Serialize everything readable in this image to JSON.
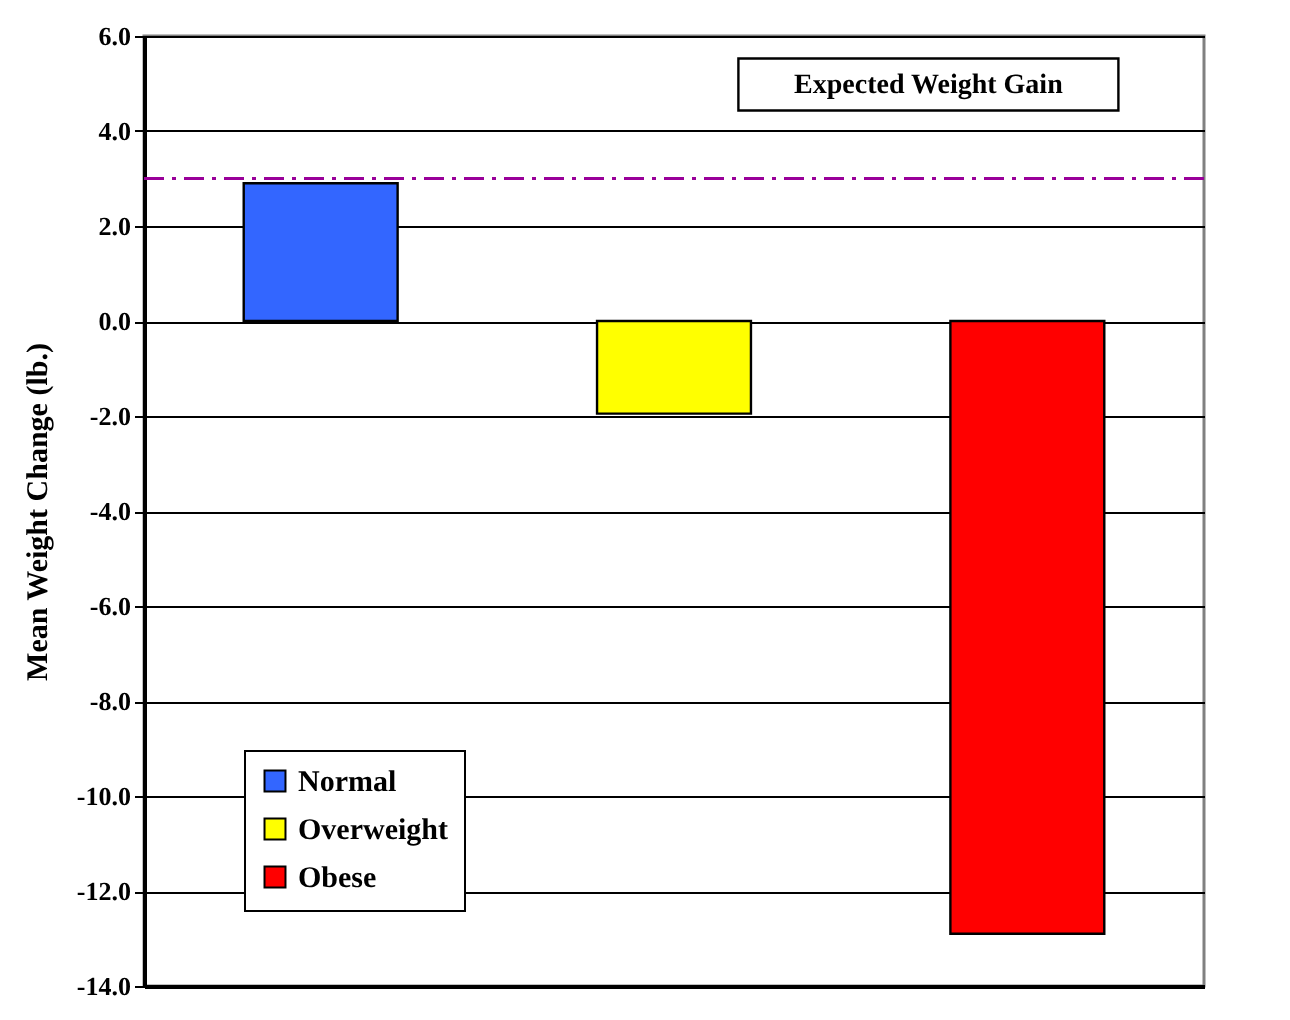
{
  "chart_data": {
    "type": "bar",
    "ylabel": "Mean Weight Change (lb.)",
    "categories": [
      null,
      null,
      null
    ],
    "series": [
      {
        "name": "Normal",
        "color": "#3366ff",
        "values": [
          2.9,
          null,
          null
        ]
      },
      {
        "name": "Overweight",
        "color": "#ffff00",
        "values": [
          null,
          -1.95,
          null
        ]
      },
      {
        "name": "Obese",
        "color": "#ff0000",
        "values": [
          null,
          null,
          -12.9
        ]
      }
    ],
    "ylim": [
      -14,
      6
    ],
    "yticks": [
      {
        "value": -14,
        "label": "-14.0"
      },
      {
        "value": -12,
        "label": "-12.0"
      },
      {
        "value": -10,
        "label": "-10.0"
      },
      {
        "value": -8,
        "label": "-8.0"
      },
      {
        "value": -6,
        "label": "-6.0"
      },
      {
        "value": -4,
        "label": "-4.0"
      },
      {
        "value": -2,
        "label": "-2.0"
      },
      {
        "value": 0,
        "label": "0.0"
      },
      {
        "value": 2,
        "label": "2.0"
      },
      {
        "value": 4,
        "label": "4.0"
      },
      {
        "value": 6,
        "label": "6.0"
      }
    ],
    "ref_lines": [
      {
        "axis": "y",
        "value": 3.0,
        "label": "Expected Weight Gain",
        "color": "#990099",
        "line_style": "dashed"
      }
    ],
    "grid": "y",
    "legend": "bottom left",
    "tick_labels": "y"
  }
}
